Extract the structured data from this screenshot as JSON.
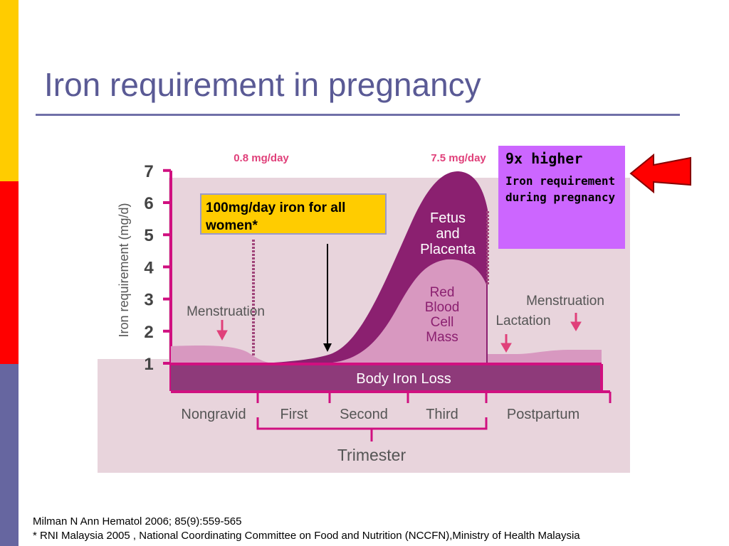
{
  "slide": {
    "title": "Iron requirement in pregnancy",
    "footer_line1": "Milman N Ann Hematol 2006; 85(9):559-565",
    "footer_line2": "* RNI Malaysia 2005 , National Coordinating Committee on Food and Nutrition (NCCFN),Ministry of Health Malaysia"
  },
  "callouts": {
    "yellow_text": "100mg/day iron for all women*",
    "purple_heading": "9x higher",
    "purple_body": "Iron requirement during pregnancy"
  },
  "colors": {
    "figure_bg": "#e8d4dc",
    "axis": "#d01080",
    "fetus": "#8b2070",
    "rbc": "#d898c0",
    "body_loss": "#8e3a7a",
    "annotation": "#e0407a",
    "arrow_red": "#ff0000"
  },
  "chart_data": {
    "type": "area",
    "ylabel": "Iron requirement (mg/d)",
    "yticks": [
      "1",
      "2",
      "3",
      "4",
      "5",
      "6",
      "7"
    ],
    "ylim": [
      1,
      7
    ],
    "xlabel": "Trimester",
    "x_categories": [
      "Nongravid",
      "First",
      "Second",
      "Third",
      "Postpartum"
    ],
    "top_labels": [
      "0.8 mg/day",
      "7.5 mg/day"
    ],
    "region_labels": {
      "body_iron_loss": "Body Iron Loss",
      "fetus": "Fetus and Placenta",
      "rbc": "Red Blood Cell Mass",
      "menstruation_left": "Menstruation",
      "menstruation_right": "Menstruation",
      "lactation": "Lactation"
    },
    "series": [
      {
        "name": "Body Iron Loss",
        "values": [
          1,
          1,
          1,
          1,
          1
        ]
      },
      {
        "name": "Red Blood Cell Mass",
        "values": [
          1.4,
          1,
          1.1,
          4.2,
          1.3
        ]
      },
      {
        "name": "Fetus and Placenta",
        "values": [
          1.4,
          1,
          1.5,
          6.9,
          1.4
        ]
      }
    ]
  }
}
